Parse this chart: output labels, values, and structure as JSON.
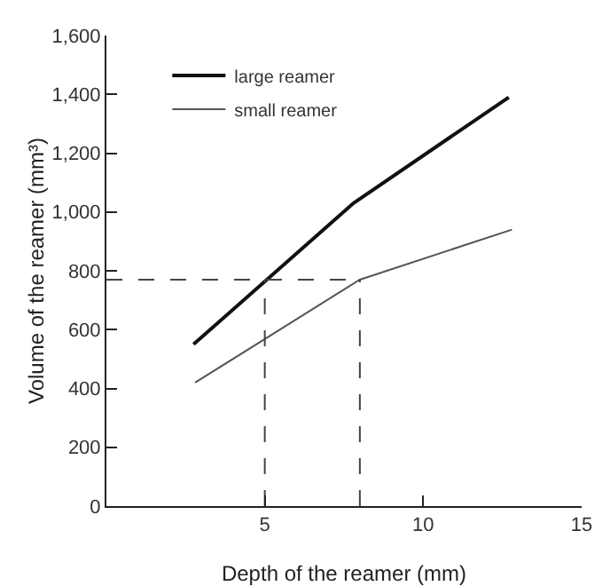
{
  "chart_data": {
    "type": "line",
    "xlabel": "Depth of the reamer (mm)",
    "ylabel": "Volume of the reamer (mm³)",
    "xlim": [
      0,
      15
    ],
    "xticks": [
      5,
      10,
      15
    ],
    "ylim": [
      0,
      1600
    ],
    "yticks": [
      {
        "value": 0,
        "label": "0"
      },
      {
        "value": 200,
        "label": "200"
      },
      {
        "value": 400,
        "label": "400"
      },
      {
        "value": 600,
        "label": "600"
      },
      {
        "value": 800,
        "label": "800"
      },
      {
        "value": 1000,
        "label": "1,000"
      },
      {
        "value": 1200,
        "label": "1,200"
      },
      {
        "value": 1400,
        "label": "1,400"
      },
      {
        "value": 1600,
        "label": "1,600"
      }
    ],
    "grid": false,
    "legend": "top left",
    "marker": "none",
    "series": [
      {
        "name": "large reamer",
        "color": "#111111",
        "x": [
          2.75,
          7.8,
          12.7
        ],
        "values": [
          550,
          1030,
          1390
        ]
      },
      {
        "name": "small reamer",
        "color": "#555555",
        "x": [
          2.8,
          8,
          12.8
        ],
        "values": [
          420,
          770,
          940
        ]
      },
      {
        "color": "#444444",
        "line_style": "dashed",
        "x": [
          0,
          8
        ],
        "values": [
          770,
          770
        ]
      },
      {
        "color": "#444444",
        "line_style": "dashed",
        "x": [
          5,
          5
        ],
        "values": [
          0,
          770
        ]
      },
      {
        "color": "#444444",
        "line_style": "dashed",
        "x": [
          8,
          8
        ],
        "values": [
          0,
          770
        ]
      }
    ]
  }
}
